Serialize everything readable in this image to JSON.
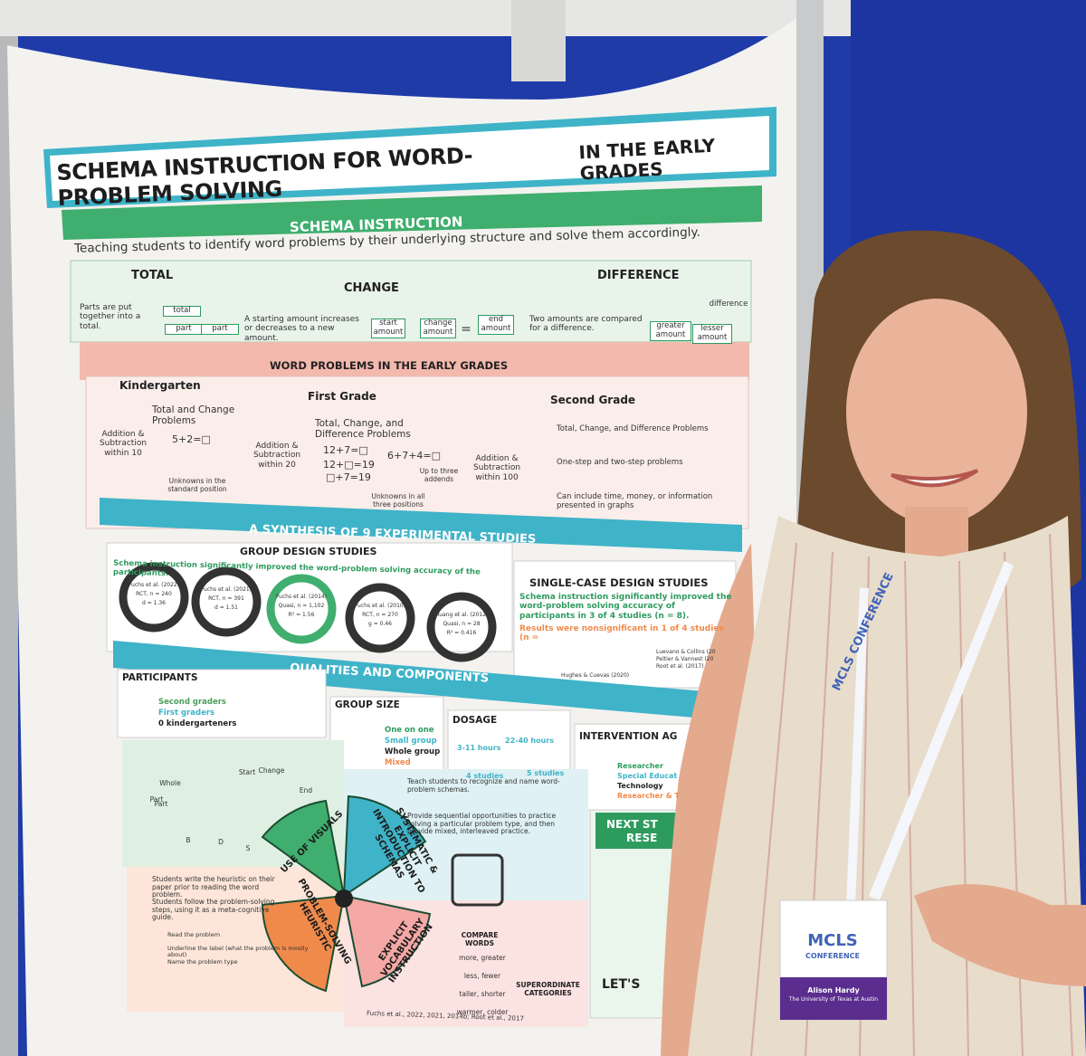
{
  "title": {
    "main": "SCHEMA INSTRUCTION FOR WORD-PROBLEM SOLVING",
    "sub": "IN THE EARLY GRADES"
  },
  "schema": {
    "heading": "SCHEMA INSTRUCTION",
    "description": "Teaching students to identify word problems by their underlying structure and solve them accordingly.",
    "columns": [
      {
        "name": "TOTAL",
        "text": "Parts are put together into a total.",
        "diagram": [
          "total",
          "part",
          "part"
        ]
      },
      {
        "name": "CHANGE",
        "text": "A starting amount increases or decreases to a new amount.",
        "diagram": [
          "start amount",
          "change amount",
          "=",
          "end amount"
        ]
      },
      {
        "name": "DIFFERENCE",
        "text": "Two amounts are compared for a difference.",
        "diagram": [
          "difference",
          "greater amount",
          "lesser amount"
        ]
      }
    ]
  },
  "grades": {
    "heading": "WORD PROBLEMS IN THE EARLY GRADES",
    "columns": [
      {
        "name": "Kindergarten",
        "range": "Addition & Subtraction within 10",
        "problems": "Total and Change Problems",
        "examples": [
          "5+2=□"
        ],
        "note": "Unknowns in the standard position"
      },
      {
        "name": "First Grade",
        "range": "Addition & Subtraction within 20",
        "problems": "Total, Change, and Difference Problems",
        "examples": [
          "12+7=□",
          "12+□=19",
          "□+7=19",
          "6+7+4=□"
        ],
        "note": "Unknowns in all three positions",
        "note2": "Up to three addends"
      },
      {
        "name": "Second Grade",
        "range": "Addition & Subtraction within 100",
        "points": [
          "Total, Change, and Difference Problems",
          "One-step and two-step problems",
          "Can include time, money, or information presented in graphs"
        ]
      }
    ]
  },
  "synthesis": {
    "heading": "A SYNTHESIS OF 9 EXPERIMENTAL STUDIES",
    "group": {
      "heading": "GROUP DESIGN STUDIES",
      "finding": "Schema instruction significantly improved the word-problem solving accuracy of the participants.",
      "studies": [
        [
          "Fuchs et al. (2022)",
          "RCT, n = 240",
          "d = 1.36"
        ],
        [
          "Fuchs et al. (2021)",
          "RCT, n = 391",
          "d = 1.51"
        ],
        [
          "Fuchs et al. (2014)",
          "Quasi, n = 1,102",
          "R² = 1.56"
        ],
        [
          "Fuchs et al. (2010)",
          "RCT, n = 270",
          "g = 0.46"
        ],
        [
          "Huang et al. (2012)",
          "Quasi, n = 28",
          "R² = 0.416"
        ]
      ]
    },
    "single": {
      "heading": "SINGLE-CASE DESIGN STUDIES",
      "finding": "Schema instruction significantly improved the word-problem solving accuracy of participants in 3 of 4 studies (n = 8).",
      "nonsig": "Results were nonsignificant in 1 of 4 studies (n =",
      "refs": [
        "Luevano & Collins (20",
        "Peltier & Vannest (20",
        "Root et al. (2017)",
        "Hughes & Cuevas (2020)"
      ]
    }
  },
  "qualities": {
    "heading": "QUALITIES AND COMPONENTS",
    "participants": {
      "heading": "PARTICIPANTS",
      "items": [
        "Second graders",
        "First graders",
        "0 kindergarteners"
      ]
    },
    "group_size": {
      "heading": "GROUP SIZE",
      "items": [
        "One on one",
        "Small group",
        "Whole group",
        "Mixed"
      ]
    },
    "dosage": {
      "heading": "DOSAGE",
      "items": [
        "3-11 hours",
        "22-40 hours",
        "4 studies",
        "5 studies"
      ]
    },
    "agent": {
      "heading": "INTERVENTION AG",
      "items": [
        "Researcher",
        "Special Educat",
        "Technology",
        "Researcher & T"
      ]
    }
  },
  "components": {
    "diagram": [
      "Whole",
      "Part",
      "Part",
      "Start",
      "Change",
      "End",
      "B",
      "D",
      "S"
    ],
    "wedges": [
      "USE OF VISUALS",
      "SYSTEMATIC & EXPLICIT INTRODUCTION TO SCHEMAS",
      "PROBLEM-SOLVING HEURISTIC",
      "EXPLICIT VOCABULARY INSTRUCTION"
    ],
    "schema_steps": [
      "Teach students to recognize and name word-problem schemas.",
      "Provide sequential opportunities to practice solving a particular problem type, and then provide mixed, interleaved practice."
    ],
    "heuristic_steps": [
      "Students write the heuristic on their paper prior to reading the word problem.",
      "Students follow the problem-solving steps, using it as a meta-cognitive guide."
    ],
    "run": [
      "Read the problem",
      "Underline the label (what the problem is mostly about)",
      "Name the problem type"
    ],
    "compare": {
      "heading": "COMPARE WORDS",
      "items": [
        "more, greater",
        "less, fewer",
        "taller, shorter",
        "warmer, colder"
      ]
    },
    "superordinate": "SUPERORDINATE CATEGORIES",
    "citation": "Fuchs et al., 2022, 2021, 2014b; Root et al., 2017"
  },
  "next": {
    "heading": "NEXT ST",
    "heading2": "RESE",
    "contact": "LET'S"
  },
  "badge": {
    "lanyard": "MCLS CONFERENCE",
    "logo": "MCLS",
    "logo_sub": "CONFERENCE",
    "name": "Alison Hardy",
    "affiliation": "The University of Texas at Austin"
  }
}
